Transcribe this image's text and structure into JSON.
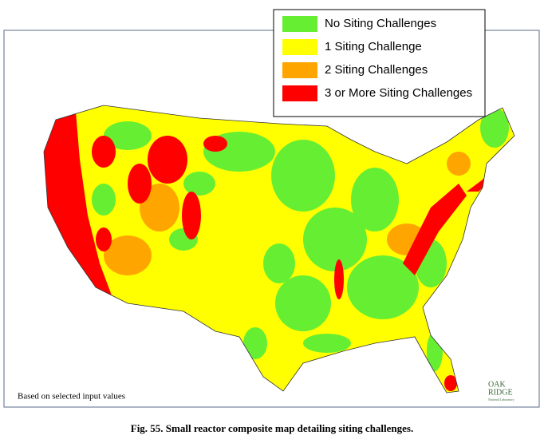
{
  "legend": {
    "items": [
      {
        "label": "No Siting Challenges",
        "color": "#66ee33"
      },
      {
        "label": "1 Siting Challenge",
        "color": "#ffff00"
      },
      {
        "label": "2 Siting Challenges",
        "color": "#ffa500"
      },
      {
        "label": "3 or More Siting Challenges",
        "color": "#ff0000"
      }
    ]
  },
  "note": "Based on selected input values",
  "logo": {
    "line1": "OAK",
    "line2": "RIDGE",
    "line3": "National Laboratory"
  },
  "caption": "Fig. 55. Small reactor composite map detailing siting challenges."
}
